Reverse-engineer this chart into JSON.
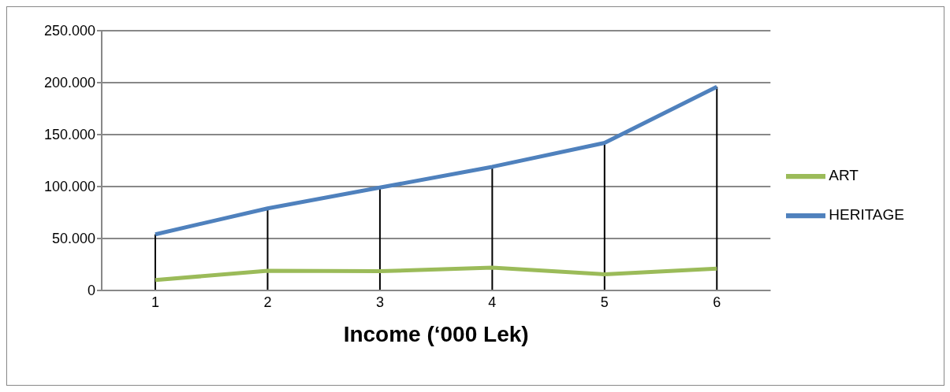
{
  "chart_data": {
    "type": "line",
    "xlabel": "Income (‘000 Lek)",
    "categories": [
      "1",
      "2",
      "3",
      "4",
      "5",
      "6"
    ],
    "series": [
      {
        "name": "ART",
        "color": "#9bbb59",
        "values": [
          10000,
          19000,
          18500,
          22000,
          15500,
          21000
        ]
      },
      {
        "name": "HERITAGE",
        "color": "#4f81bd",
        "values": [
          54000,
          79000,
          99000,
          119000,
          142000,
          196000
        ]
      }
    ],
    "ylim": [
      0,
      250000
    ],
    "yticks": [
      {
        "value": 0,
        "label": "0"
      },
      {
        "value": 50000,
        "label": "50.000"
      },
      {
        "value": 100000,
        "label": "100.000"
      },
      {
        "value": 150000,
        "label": "150.000"
      },
      {
        "value": 200000,
        "label": "200.000"
      },
      {
        "value": 250000,
        "label": "250.000"
      }
    ],
    "ref_lines": [
      {
        "axis": "x",
        "value": "1",
        "color": "#000000"
      },
      {
        "axis": "x",
        "value": "2",
        "color": "#000000"
      },
      {
        "axis": "x",
        "value": "3",
        "color": "#000000"
      },
      {
        "axis": "x",
        "value": "4",
        "color": "#000000"
      },
      {
        "axis": "x",
        "value": "5",
        "color": "#000000"
      },
      {
        "axis": "x",
        "value": "6",
        "color": "#000000"
      }
    ],
    "grid": "y",
    "legend": "right",
    "marker": "none",
    "line_style": "solid"
  }
}
